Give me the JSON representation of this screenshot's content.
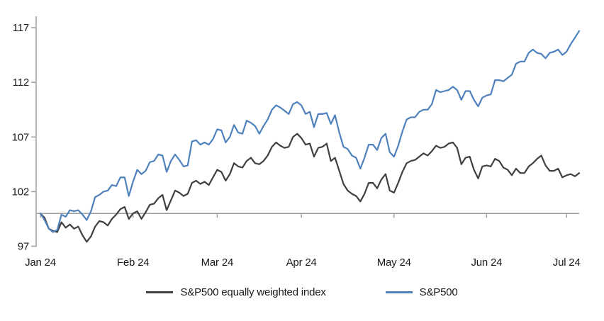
{
  "chart_data": {
    "type": "line",
    "title": "",
    "xlabel": "",
    "ylabel": "",
    "ylim": [
      97,
      118
    ],
    "y_ticks": [
      117,
      112,
      107,
      102,
      97
    ],
    "baseline_value": 100,
    "grid": false,
    "legend_position": "bottom-center",
    "x_tick_labels": [
      "Jan 24",
      "Feb 24",
      "Mar 24",
      "Apr 24",
      "May 24",
      "Jun 24",
      "Jul 24"
    ],
    "axis_color": "#9e9e9e",
    "text_color": "#1a1a1a",
    "dates": [
      "2023-12-29",
      "2024-01-02",
      "2024-01-03",
      "2024-01-04",
      "2024-01-05",
      "2024-01-08",
      "2024-01-09",
      "2024-01-10",
      "2024-01-11",
      "2024-01-12",
      "2024-01-16",
      "2024-01-17",
      "2024-01-18",
      "2024-01-19",
      "2024-01-22",
      "2024-01-23",
      "2024-01-24",
      "2024-01-25",
      "2024-01-26",
      "2024-01-29",
      "2024-01-30",
      "2024-01-31",
      "2024-02-01",
      "2024-02-02",
      "2024-02-05",
      "2024-02-06",
      "2024-02-07",
      "2024-02-08",
      "2024-02-09",
      "2024-02-12",
      "2024-02-13",
      "2024-02-14",
      "2024-02-15",
      "2024-02-16",
      "2024-02-20",
      "2024-02-21",
      "2024-02-22",
      "2024-02-23",
      "2024-02-26",
      "2024-02-27",
      "2024-02-28",
      "2024-02-29",
      "2024-03-01",
      "2024-03-04",
      "2024-03-05",
      "2024-03-06",
      "2024-03-07",
      "2024-03-08",
      "2024-03-11",
      "2024-03-12",
      "2024-03-13",
      "2024-03-14",
      "2024-03-15",
      "2024-03-18",
      "2024-03-19",
      "2024-03-20",
      "2024-03-21",
      "2024-03-22",
      "2024-03-25",
      "2024-03-26",
      "2024-03-27",
      "2024-03-28",
      "2024-04-01",
      "2024-04-02",
      "2024-04-03",
      "2024-04-04",
      "2024-04-05",
      "2024-04-08",
      "2024-04-09",
      "2024-04-10",
      "2024-04-11",
      "2024-04-12",
      "2024-04-15",
      "2024-04-16",
      "2024-04-17",
      "2024-04-18",
      "2024-04-19",
      "2024-04-22",
      "2024-04-23",
      "2024-04-24",
      "2024-04-25",
      "2024-04-26",
      "2024-04-29",
      "2024-04-30",
      "2024-05-01",
      "2024-05-02",
      "2024-05-03",
      "2024-05-06",
      "2024-05-07",
      "2024-05-08",
      "2024-05-09",
      "2024-05-10",
      "2024-05-13",
      "2024-05-14",
      "2024-05-15",
      "2024-05-16",
      "2024-05-17",
      "2024-05-20",
      "2024-05-21",
      "2024-05-22",
      "2024-05-23",
      "2024-05-24",
      "2024-05-28",
      "2024-05-29",
      "2024-05-30",
      "2024-05-31",
      "2024-06-03",
      "2024-06-04",
      "2024-06-05",
      "2024-06-06",
      "2024-06-07",
      "2024-06-10",
      "2024-06-11",
      "2024-06-12",
      "2024-06-13",
      "2024-06-14",
      "2024-06-17",
      "2024-06-18",
      "2024-06-20",
      "2024-06-21",
      "2024-06-24",
      "2024-06-25",
      "2024-06-26",
      "2024-06-27",
      "2024-06-28",
      "2024-07-01",
      "2024-07-02",
      "2024-07-03",
      "2024-07-05"
    ],
    "series": [
      {
        "name": "S&P500 equally weighted index",
        "color": "#404040",
        "values": [
          100.0,
          99.6,
          98.6,
          98.4,
          98.3,
          99.2,
          98.7,
          99.0,
          98.6,
          98.8,
          98.0,
          97.4,
          97.9,
          98.8,
          99.3,
          99.2,
          98.9,
          99.5,
          99.9,
          100.4,
          100.6,
          99.5,
          100.0,
          100.2,
          99.5,
          100.1,
          100.8,
          100.9,
          101.4,
          101.7,
          100.3,
          101.2,
          102.1,
          101.9,
          101.6,
          101.8,
          102.8,
          103.0,
          102.7,
          102.9,
          102.6,
          103.3,
          104.0,
          103.8,
          103.0,
          103.6,
          104.6,
          104.3,
          104.2,
          104.8,
          105.1,
          104.6,
          104.5,
          104.8,
          105.3,
          106.1,
          106.5,
          106.2,
          106.0,
          106.1,
          107.0,
          107.3,
          106.9,
          106.3,
          106.4,
          105.2,
          106.0,
          106.1,
          106.4,
          104.8,
          105.1,
          103.9,
          102.7,
          102.1,
          101.8,
          101.6,
          101.1,
          101.8,
          102.8,
          102.8,
          102.3,
          103.1,
          103.6,
          102.1,
          101.9,
          102.8,
          103.8,
          104.6,
          104.8,
          104.9,
          105.2,
          105.5,
          105.3,
          105.7,
          106.2,
          106.0,
          106.1,
          106.4,
          106.5,
          106.0,
          104.5,
          105.1,
          105.2,
          104.0,
          103.2,
          104.3,
          104.4,
          104.3,
          105.0,
          104.8,
          104.2,
          104.0,
          103.5,
          104.1,
          103.7,
          103.7,
          104.3,
          104.6,
          105.0,
          105.3,
          104.4,
          103.9,
          103.9,
          104.1,
          103.3,
          103.5,
          103.6,
          103.4,
          103.7
        ]
      },
      {
        "name": "S&P500",
        "color": "#4F81BD",
        "values": [
          100.0,
          99.4,
          98.6,
          98.3,
          98.5,
          99.9,
          99.7,
          100.3,
          100.2,
          100.3,
          99.9,
          99.4,
          100.2,
          101.5,
          101.7,
          102.0,
          102.1,
          102.6,
          102.5,
          103.3,
          103.3,
          101.6,
          102.9,
          104.0,
          103.6,
          103.9,
          104.7,
          104.8,
          105.4,
          105.3,
          103.8,
          104.8,
          105.4,
          104.9,
          104.3,
          104.4,
          106.6,
          106.7,
          106.3,
          106.5,
          106.3,
          106.8,
          107.7,
          107.6,
          106.5,
          107.0,
          108.1,
          107.4,
          107.3,
          108.5,
          108.3,
          108.0,
          107.3,
          108.0,
          108.6,
          109.5,
          109.9,
          109.7,
          109.4,
          109.1,
          110.0,
          110.2,
          109.9,
          109.1,
          109.3,
          107.9,
          109.1,
          109.1,
          109.2,
          108.2,
          109.0,
          107.4,
          106.1,
          105.9,
          105.3,
          105.1,
          104.1,
          105.1,
          106.3,
          106.3,
          105.8,
          106.9,
          107.3,
          105.6,
          105.2,
          106.2,
          107.5,
          108.6,
          108.8,
          108.8,
          109.3,
          109.5,
          109.5,
          110.0,
          111.3,
          111.1,
          111.2,
          111.3,
          111.6,
          111.3,
          110.4,
          111.2,
          111.2,
          110.4,
          109.8,
          110.6,
          110.8,
          110.9,
          112.2,
          112.2,
          112.1,
          112.4,
          112.7,
          113.7,
          113.9,
          113.9,
          114.7,
          115.0,
          114.7,
          114.6,
          114.2,
          114.7,
          114.8,
          115.0,
          114.5,
          114.8,
          115.5,
          116.1,
          116.7
        ]
      }
    ]
  }
}
